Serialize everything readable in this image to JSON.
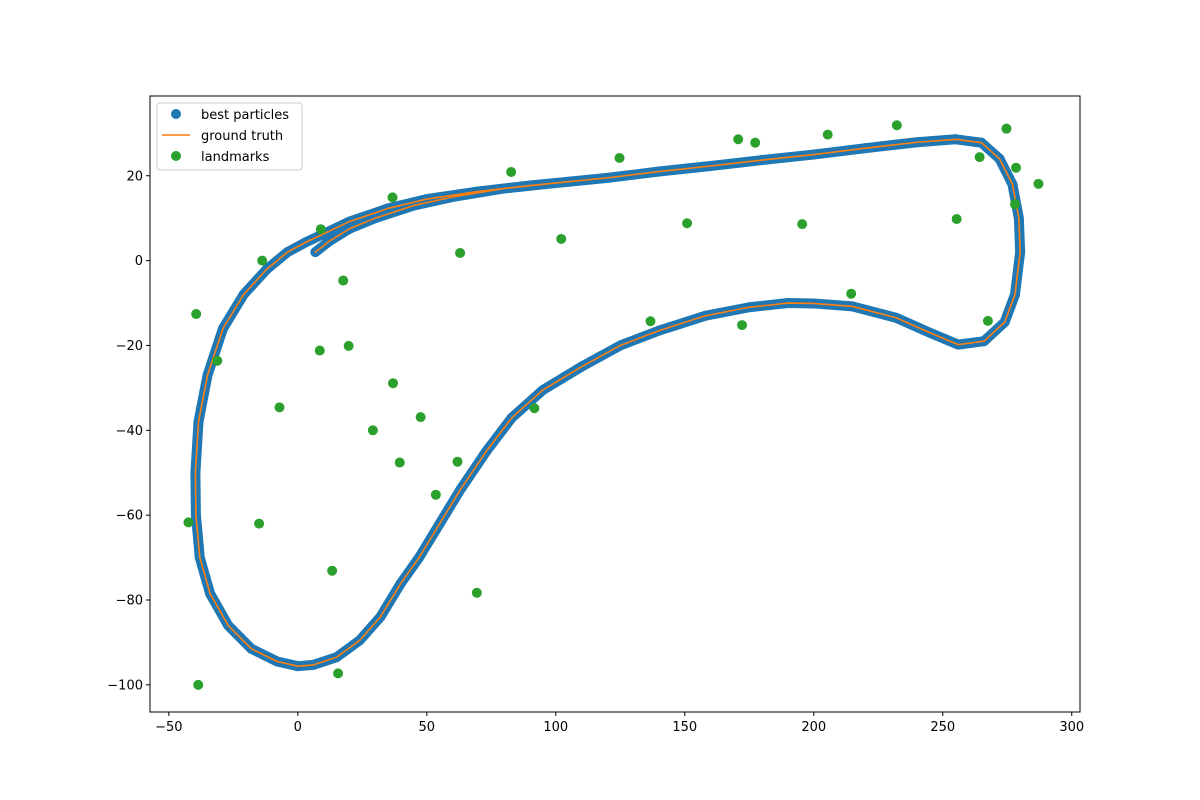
{
  "chart_data": {
    "type": "scatter",
    "title": "",
    "xlabel": "",
    "ylabel": "",
    "xlim": [
      -57.3,
      303.2
    ],
    "ylim": [
      -106.4,
      38.8
    ],
    "xticks": [
      -50,
      0,
      50,
      100,
      150,
      200,
      250,
      300
    ],
    "yticks": [
      -100,
      -80,
      -60,
      -40,
      -20,
      0,
      20
    ],
    "grid": false,
    "legend_position": "top-left",
    "colors": {
      "best_particles": "#1f77b4",
      "ground_truth": "#ff7f0e",
      "landmarks": "#2ca02c"
    },
    "series": [
      {
        "name": "best particles",
        "kind": "scatter",
        "points": [
          [
            6.8,
            2.0
          ],
          [
            12.0,
            4.5
          ],
          [
            20.0,
            7.5
          ],
          [
            30.0,
            10.0
          ],
          [
            45.0,
            13.0
          ],
          [
            60.0,
            15.0
          ],
          [
            80.0,
            17.0
          ],
          [
            100.0,
            18.3
          ],
          [
            120.0,
            19.5
          ],
          [
            140.0,
            21.0
          ],
          [
            160.0,
            22.3
          ],
          [
            180.0,
            23.7
          ],
          [
            200.0,
            25.0
          ],
          [
            220.0,
            26.5
          ],
          [
            240.0,
            27.9
          ],
          [
            255.0,
            28.6
          ],
          [
            265.0,
            27.8
          ],
          [
            272.0,
            24.0
          ],
          [
            277.0,
            18.0
          ],
          [
            279.5,
            10.0
          ],
          [
            280.0,
            2.0
          ],
          [
            278.0,
            -8.0
          ],
          [
            274.0,
            -14.5
          ],
          [
            266.0,
            -19.0
          ],
          [
            256.0,
            -19.8
          ],
          [
            245.0,
            -17.0
          ],
          [
            232.0,
            -13.5
          ],
          [
            215.0,
            -10.8
          ],
          [
            200.0,
            -10.1
          ],
          [
            190.0,
            -10.0
          ],
          [
            175.0,
            -11.0
          ],
          [
            158.0,
            -13.0
          ],
          [
            140.0,
            -16.5
          ],
          [
            125.0,
            -20.0
          ],
          [
            110.0,
            -25.0
          ],
          [
            95.0,
            -30.5
          ],
          [
            83.0,
            -37.0
          ],
          [
            73.0,
            -45.0
          ],
          [
            63.0,
            -54.0
          ],
          [
            55.0,
            -62.0
          ],
          [
            47.0,
            -70.0
          ],
          [
            40.0,
            -76.0
          ],
          [
            32.0,
            -84.0
          ],
          [
            24.0,
            -89.5
          ],
          [
            15.0,
            -93.5
          ],
          [
            6.0,
            -95.3
          ],
          [
            0.0,
            -95.6
          ],
          [
            -8.0,
            -94.5
          ],
          [
            -18.0,
            -91.5
          ],
          [
            -27.0,
            -86.0
          ],
          [
            -34.0,
            -78.5
          ],
          [
            -38.0,
            -70.0
          ],
          [
            -39.5,
            -60.0
          ],
          [
            -39.7,
            -50.0
          ],
          [
            -38.5,
            -38.0
          ],
          [
            -35.0,
            -27.0
          ],
          [
            -29.0,
            -16.0
          ],
          [
            -21.0,
            -8.0
          ],
          [
            -12.0,
            -2.0
          ],
          [
            -4.0,
            2.0
          ],
          [
            3.0,
            4.3
          ],
          [
            10.0,
            6.3
          ],
          [
            20.0,
            9.2
          ],
          [
            35.0,
            12.3
          ],
          [
            50.0,
            14.5
          ],
          [
            70.0,
            16.3
          ],
          [
            90.0,
            17.7
          ],
          [
            105.0,
            18.6
          ]
        ]
      },
      {
        "name": "ground truth",
        "kind": "line",
        "points": [
          [
            6.8,
            2.0
          ],
          [
            12.0,
            4.5
          ],
          [
            20.0,
            7.5
          ],
          [
            30.0,
            10.0
          ],
          [
            45.0,
            13.0
          ],
          [
            60.0,
            15.0
          ],
          [
            80.0,
            17.0
          ],
          [
            100.0,
            18.3
          ],
          [
            120.0,
            19.5
          ],
          [
            140.0,
            21.0
          ],
          [
            160.0,
            22.3
          ],
          [
            180.0,
            23.7
          ],
          [
            200.0,
            25.0
          ],
          [
            220.0,
            26.5
          ],
          [
            240.0,
            27.9
          ],
          [
            255.0,
            28.6
          ],
          [
            265.0,
            27.8
          ],
          [
            272.0,
            24.0
          ],
          [
            277.0,
            18.0
          ],
          [
            279.5,
            10.0
          ],
          [
            280.0,
            2.0
          ],
          [
            278.0,
            -8.0
          ],
          [
            274.0,
            -14.5
          ],
          [
            266.0,
            -19.0
          ],
          [
            256.0,
            -19.8
          ],
          [
            245.0,
            -17.0
          ],
          [
            232.0,
            -13.5
          ],
          [
            215.0,
            -10.8
          ],
          [
            200.0,
            -10.1
          ],
          [
            190.0,
            -10.0
          ],
          [
            175.0,
            -11.0
          ],
          [
            158.0,
            -13.0
          ],
          [
            140.0,
            -16.5
          ],
          [
            125.0,
            -20.0
          ],
          [
            110.0,
            -25.0
          ],
          [
            95.0,
            -30.5
          ],
          [
            83.0,
            -37.0
          ],
          [
            73.0,
            -45.0
          ],
          [
            63.0,
            -54.0
          ],
          [
            55.0,
            -62.0
          ],
          [
            47.0,
            -70.0
          ],
          [
            40.0,
            -76.0
          ],
          [
            32.0,
            -84.0
          ],
          [
            24.0,
            -89.5
          ],
          [
            15.0,
            -93.5
          ],
          [
            6.0,
            -95.3
          ],
          [
            0.0,
            -95.6
          ],
          [
            -8.0,
            -94.5
          ],
          [
            -18.0,
            -91.5
          ],
          [
            -27.0,
            -86.0
          ],
          [
            -34.0,
            -78.5
          ],
          [
            -38.0,
            -70.0
          ],
          [
            -39.5,
            -60.0
          ],
          [
            -39.7,
            -50.0
          ],
          [
            -38.5,
            -38.0
          ],
          [
            -35.0,
            -27.0
          ],
          [
            -29.0,
            -16.0
          ],
          [
            -21.0,
            -8.0
          ],
          [
            -12.0,
            -2.0
          ],
          [
            -4.0,
            2.0
          ],
          [
            3.0,
            4.3
          ],
          [
            10.0,
            6.3
          ],
          [
            20.0,
            9.2
          ],
          [
            35.0,
            12.3
          ],
          [
            50.0,
            14.5
          ],
          [
            70.0,
            16.3
          ],
          [
            90.0,
            17.7
          ],
          [
            105.0,
            18.6
          ]
        ]
      },
      {
        "name": "landmarks",
        "kind": "scatter",
        "points": [
          [
            -38.6,
            -100.0
          ],
          [
            15.6,
            -97.3
          ],
          [
            69.4,
            -78.3
          ],
          [
            -42.4,
            -61.7
          ],
          [
            -15.0,
            -62.0
          ],
          [
            13.3,
            -73.1
          ],
          [
            53.5,
            -55.2
          ],
          [
            61.9,
            -47.4
          ],
          [
            39.5,
            -47.6
          ],
          [
            29.1,
            -40.0
          ],
          [
            47.6,
            -36.9
          ],
          [
            91.7,
            -34.8
          ],
          [
            36.9,
            -28.9
          ],
          [
            -7.1,
            -34.6
          ],
          [
            -31.2,
            -23.6
          ],
          [
            8.5,
            -21.2
          ],
          [
            19.7,
            -20.1
          ],
          [
            -39.4,
            -12.6
          ],
          [
            17.6,
            -4.7
          ],
          [
            62.9,
            1.8
          ],
          [
            -13.8,
            0.0
          ],
          [
            8.9,
            7.4
          ],
          [
            36.7,
            14.9
          ],
          [
            82.7,
            20.9
          ],
          [
            102.1,
            5.1
          ],
          [
            124.7,
            24.2
          ],
          [
            150.9,
            8.8
          ],
          [
            136.7,
            -14.3
          ],
          [
            170.7,
            28.6
          ],
          [
            177.3,
            27.8
          ],
          [
            172.2,
            -15.2
          ],
          [
            195.5,
            8.6
          ],
          [
            205.4,
            29.7
          ],
          [
            214.5,
            -7.8
          ],
          [
            232.2,
            31.9
          ],
          [
            255.4,
            9.8
          ],
          [
            264.3,
            24.4
          ],
          [
            274.7,
            31.1
          ],
          [
            278.4,
            21.9
          ],
          [
            278.0,
            13.3
          ],
          [
            287.1,
            18.1
          ],
          [
            267.5,
            -14.2
          ]
        ]
      }
    ]
  }
}
